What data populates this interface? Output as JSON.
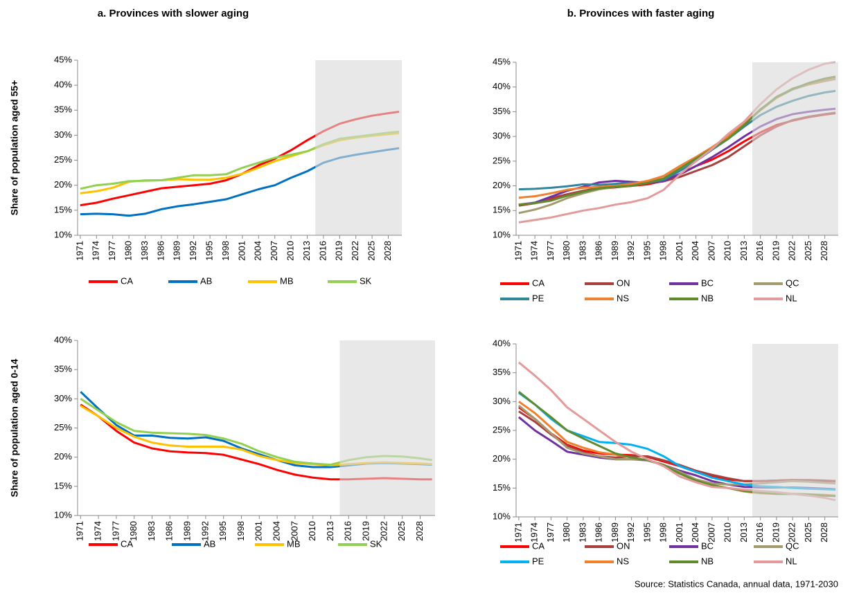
{
  "source": "Source: Statistics Canada, annual data, 1971-2030",
  "chart_data": [
    {
      "type": "line",
      "title": "a. Provinces with slower aging",
      "ylabel": "Share of population aged 55+",
      "x": [
        1971,
        1974,
        1977,
        1980,
        1983,
        1986,
        1989,
        1992,
        1995,
        1998,
        2001,
        2004,
        2007,
        2010,
        2013,
        2016,
        2019,
        2022,
        2025,
        2028,
        2030
      ],
      "xlim": [
        1970.5,
        2030.5
      ],
      "xticks": [
        1971,
        1974,
        1977,
        1980,
        1983,
        1986,
        1989,
        1992,
        1995,
        1998,
        2001,
        2004,
        2007,
        2010,
        2013,
        2016,
        2019,
        2022,
        2025,
        2028
      ],
      "ylim": [
        10,
        45
      ],
      "yticks": [
        {
          "value": 10,
          "label": "10%"
        },
        {
          "value": 15,
          "label": "15%"
        },
        {
          "value": 20,
          "label": "20%"
        },
        {
          "value": 25,
          "label": "25%"
        },
        {
          "value": 30,
          "label": "30%"
        },
        {
          "value": 35,
          "label": "35%"
        },
        {
          "value": 40,
          "label": "40%"
        },
        {
          "value": 45,
          "label": "45%"
        }
      ],
      "shaded_xrange": [
        2014.5,
        2030.5
      ],
      "legend_columns": 4,
      "series": [
        {
          "name": "CA",
          "color": "#ff0000",
          "values": [
            16,
            16.5,
            17.3,
            18,
            18.7,
            19.4,
            19.7,
            20,
            20.3,
            21,
            22.3,
            24,
            25.3,
            27,
            29,
            30.8,
            32.3,
            33.2,
            33.9,
            34.4,
            34.7
          ]
        },
        {
          "name": "AB",
          "color": "#0070c0",
          "values": [
            14.2,
            14.3,
            14.2,
            13.9,
            14.3,
            15.2,
            15.8,
            16.2,
            16.7,
            17.2,
            18.2,
            19.2,
            20,
            21.5,
            22.8,
            24.5,
            25.5,
            26.1,
            26.6,
            27.1,
            27.4
          ]
        },
        {
          "name": "MB",
          "color": "#ffc000",
          "values": [
            18.4,
            18.8,
            19.5,
            20.7,
            21,
            21,
            21.2,
            21.1,
            21.1,
            21.5,
            22.3,
            23.5,
            24.8,
            25.8,
            26.8,
            28,
            29,
            29.5,
            29.9,
            30.2,
            30.4
          ]
        },
        {
          "name": "SK",
          "color": "#92d050",
          "values": [
            19.3,
            20,
            20.3,
            20.8,
            20.9,
            21,
            21.5,
            22,
            22,
            22.2,
            23.5,
            24.5,
            25.5,
            26.1,
            26.8,
            28.2,
            29.3,
            29.7,
            30.1,
            30.5,
            30.7
          ]
        }
      ]
    },
    {
      "type": "line",
      "title": "b. Provinces with faster aging",
      "x": [
        1971,
        1974,
        1977,
        1980,
        1983,
        1986,
        1989,
        1992,
        1995,
        1998,
        2001,
        2004,
        2007,
        2010,
        2013,
        2016,
        2019,
        2022,
        2025,
        2028,
        2030
      ],
      "xlim": [
        1970.5,
        2030.5
      ],
      "xticks": [
        1971,
        1974,
        1977,
        1980,
        1983,
        1986,
        1989,
        1992,
        1995,
        1998,
        2001,
        2004,
        2007,
        2010,
        2013,
        2016,
        2019,
        2022,
        2025,
        2028
      ],
      "ylim": [
        10,
        45
      ],
      "yticks": [
        {
          "value": 10,
          "label": "10%"
        },
        {
          "value": 15,
          "label": "15%"
        },
        {
          "value": 20,
          "label": "20%"
        },
        {
          "value": 25,
          "label": "25%"
        },
        {
          "value": 30,
          "label": "30%"
        },
        {
          "value": 35,
          "label": "35%"
        },
        {
          "value": 40,
          "label": "40%"
        },
        {
          "value": 45,
          "label": "45%"
        }
      ],
      "shaded_xrange": [
        2014.5,
        2030.5
      ],
      "legend_columns": 4,
      "series": [
        {
          "name": "CA",
          "color": "#ff0000",
          "values": [
            16,
            16.5,
            17.3,
            18,
            18.7,
            19.4,
            19.7,
            20,
            20.3,
            21,
            22.3,
            24,
            25.3,
            27,
            29,
            30.8,
            32.3,
            33.2,
            33.9,
            34.4,
            34.7
          ]
        },
        {
          "name": "ON",
          "color": "#a93f3c",
          "values": [
            16,
            16.5,
            17.5,
            18.3,
            19,
            19.6,
            20,
            20.2,
            20.5,
            20.9,
            21.8,
            23,
            24.2,
            25.8,
            28,
            30.2,
            32,
            33.3,
            34,
            34.5,
            34.8
          ]
        },
        {
          "name": "BC",
          "color": "#7030a0",
          "values": [
            16.2,
            16.6,
            17.8,
            19,
            19.8,
            20.7,
            21,
            20.8,
            20.6,
            21,
            22.4,
            24,
            25.8,
            27.8,
            30,
            32,
            33.5,
            34.5,
            35,
            35.4,
            35.6
          ]
        },
        {
          "name": "QC",
          "color": "#a39b6d",
          "values": [
            14.5,
            15.2,
            16.2,
            17.5,
            18.5,
            19.3,
            19.8,
            20.2,
            20.8,
            22,
            24,
            25.8,
            27.8,
            30,
            32.5,
            35.5,
            37.8,
            39.5,
            40.5,
            41.2,
            41.6
          ]
        },
        {
          "name": "PE",
          "color": "#31859c",
          "values": [
            19.3,
            19.4,
            19.6,
            19.9,
            20.3,
            20.2,
            20.4,
            20.6,
            20.7,
            21.2,
            23,
            25,
            27.3,
            29.5,
            32,
            34.3,
            36,
            37.2,
            38.2,
            38.9,
            39.2
          ]
        },
        {
          "name": "NS",
          "color": "#f0802e",
          "values": [
            17.6,
            17.9,
            18.5,
            19.2,
            19.6,
            19.8,
            20,
            20.4,
            21,
            22,
            24,
            25.8,
            27.8,
            30,
            32.5,
            35.3,
            37.8,
            39.7,
            40.6,
            41.5,
            41.9
          ]
        },
        {
          "name": "NB",
          "color": "#5f8a2e",
          "values": [
            16.2,
            16.5,
            17,
            18,
            18.8,
            19.5,
            19.8,
            20,
            20.6,
            21.5,
            23.5,
            25.5,
            27.5,
            29.5,
            32.3,
            35.4,
            38,
            39.6,
            40.8,
            41.7,
            42.1
          ]
        },
        {
          "name": "NL",
          "color": "#e39a9a",
          "values": [
            12.6,
            13.1,
            13.6,
            14.3,
            15,
            15.5,
            16.2,
            16.7,
            17.5,
            19.2,
            22.3,
            25,
            27.5,
            30.5,
            33,
            36.5,
            39.5,
            41.8,
            43.5,
            44.7,
            45
          ]
        }
      ]
    },
    {
      "type": "line",
      "ylabel": "Share of population aged 0-14",
      "x": [
        1971,
        1974,
        1977,
        1980,
        1983,
        1986,
        1989,
        1992,
        1995,
        1998,
        2001,
        2004,
        2007,
        2010,
        2013,
        2016,
        2019,
        2022,
        2025,
        2028,
        2030
      ],
      "xlim": [
        1970.5,
        2030.5
      ],
      "xticks": [
        1971,
        1974,
        1977,
        1980,
        1983,
        1986,
        1989,
        1992,
        1995,
        1998,
        2001,
        2004,
        2007,
        2010,
        2013,
        2016,
        2019,
        2022,
        2025,
        2028
      ],
      "ylim": [
        10,
        40
      ],
      "yticks": [
        {
          "value": 10,
          "label": "10%"
        },
        {
          "value": 15,
          "label": "15%"
        },
        {
          "value": 20,
          "label": "20%"
        },
        {
          "value": 25,
          "label": "25%"
        },
        {
          "value": 30,
          "label": "30%"
        },
        {
          "value": 35,
          "label": "35%"
        },
        {
          "value": 40,
          "label": "40%"
        }
      ],
      "shaded_xrange": [
        2014.5,
        2030.5
      ],
      "legend_columns": 4,
      "series": [
        {
          "name": "CA",
          "color": "#ff0000",
          "values": [
            29,
            27,
            24.5,
            22.5,
            21.5,
            21,
            20.8,
            20.7,
            20.4,
            19.6,
            18.8,
            17.8,
            17,
            16.5,
            16.2,
            16.2,
            16.3,
            16.4,
            16.3,
            16.2,
            16.2
          ]
        },
        {
          "name": "AB",
          "color": "#0070c0",
          "values": [
            31.2,
            28.3,
            25.5,
            23.7,
            23.7,
            23.3,
            23.2,
            23.4,
            22.8,
            21.5,
            20.5,
            19.5,
            18.6,
            18.3,
            18.3,
            18.6,
            18.9,
            19,
            18.9,
            18.8,
            18.7
          ]
        },
        {
          "name": "MB",
          "color": "#ffc000",
          "values": [
            28.8,
            27,
            25,
            23.5,
            22.5,
            22,
            21.8,
            21.8,
            21.8,
            21.3,
            20.2,
            19.5,
            19,
            18.8,
            18.6,
            18.8,
            19,
            19.1,
            19,
            18.9,
            18.8
          ]
        },
        {
          "name": "SK",
          "color": "#92d050",
          "values": [
            30,
            28,
            26,
            24.5,
            24.2,
            24.1,
            24,
            23.8,
            23.2,
            22.3,
            21,
            20,
            19.2,
            18.9,
            18.7,
            19.5,
            20,
            20.2,
            20.1,
            19.8,
            19.5
          ]
        }
      ]
    },
    {
      "type": "line",
      "x": [
        1971,
        1974,
        1977,
        1980,
        1983,
        1986,
        1989,
        1992,
        1995,
        1998,
        2001,
        2004,
        2007,
        2010,
        2013,
        2016,
        2019,
        2022,
        2025,
        2028,
        2030
      ],
      "xlim": [
        1970.5,
        2030.5
      ],
      "xticks": [
        1971,
        1974,
        1977,
        1980,
        1983,
        1986,
        1989,
        1992,
        1995,
        1998,
        2001,
        2004,
        2007,
        2010,
        2013,
        2016,
        2019,
        2022,
        2025,
        2028
      ],
      "ylim": [
        10,
        40
      ],
      "yticks": [
        {
          "value": 10,
          "label": "10%"
        },
        {
          "value": 15,
          "label": "15%"
        },
        {
          "value": 20,
          "label": "20%"
        },
        {
          "value": 25,
          "label": "25%"
        },
        {
          "value": 30,
          "label": "30%"
        },
        {
          "value": 35,
          "label": "35%"
        },
        {
          "value": 40,
          "label": "40%"
        }
      ],
      "shaded_xrange": [
        2014.5,
        2030.5
      ],
      "legend_columns": 4,
      "series": [
        {
          "name": "CA",
          "color": "#ff0000",
          "values": [
            29,
            27,
            24.5,
            22.5,
            21.5,
            21,
            20.8,
            20.7,
            20.4,
            19.6,
            18.8,
            17.8,
            17,
            16.5,
            16.2,
            16.2,
            16.3,
            16.4,
            16.3,
            16.2,
            16.2
          ]
        },
        {
          "name": "ON",
          "color": "#a93f3c",
          "values": [
            28.3,
            26.5,
            24.3,
            22.3,
            21.2,
            20.5,
            20.3,
            20.5,
            20.5,
            19.8,
            19,
            18,
            17.3,
            16.7,
            16.2,
            16.2,
            16.3,
            16.4,
            16.4,
            16.3,
            16.2
          ]
        },
        {
          "name": "BC",
          "color": "#7030a0",
          "values": [
            27.3,
            25,
            23.2,
            21.3,
            20.8,
            20.3,
            20,
            20,
            19.8,
            19,
            18,
            17.2,
            16.2,
            15.6,
            15.2,
            15.1,
            15.1,
            15.1,
            15,
            14.9,
            14.8
          ]
        },
        {
          "name": "QC",
          "color": "#a39b6d",
          "values": [
            29.3,
            27,
            24.5,
            22,
            21,
            20.5,
            20,
            20,
            19.9,
            19,
            17.8,
            16.5,
            15.8,
            15.6,
            15.6,
            15.8,
            16,
            16.2,
            16.1,
            15.9,
            15.8
          ]
        },
        {
          "name": "PE",
          "color": "#00b0f0",
          "values": [
            31.5,
            29.5,
            27,
            25,
            24,
            23,
            22.8,
            22.5,
            21.8,
            20.5,
            18.8,
            17.8,
            16.8,
            16.2,
            15.6,
            15.3,
            15.2,
            15,
            14.9,
            14.8,
            14.7
          ]
        },
        {
          "name": "NS",
          "color": "#f0802e",
          "values": [
            30,
            28,
            25.5,
            23,
            22,
            21.2,
            20.8,
            20.3,
            19.8,
            19,
            17.5,
            16.3,
            15.5,
            15,
            14.4,
            14.1,
            14,
            14,
            13.9,
            13.8,
            13.7
          ]
        },
        {
          "name": "NB",
          "color": "#5f8a2e",
          "values": [
            31.7,
            29.5,
            27.3,
            25,
            23.6,
            22.3,
            21,
            20.3,
            19.8,
            19,
            17.5,
            16.3,
            15.5,
            15,
            14.5,
            14.2,
            14,
            14,
            13.9,
            13.7,
            13.6
          ]
        },
        {
          "name": "NL",
          "color": "#e39a9a",
          "values": [
            36.8,
            34.5,
            32,
            29,
            27,
            25,
            23,
            21.3,
            20,
            18.8,
            17,
            16,
            15.2,
            15,
            14.7,
            14.5,
            14.3,
            14,
            13.7,
            13.3,
            12.9
          ]
        }
      ]
    }
  ]
}
